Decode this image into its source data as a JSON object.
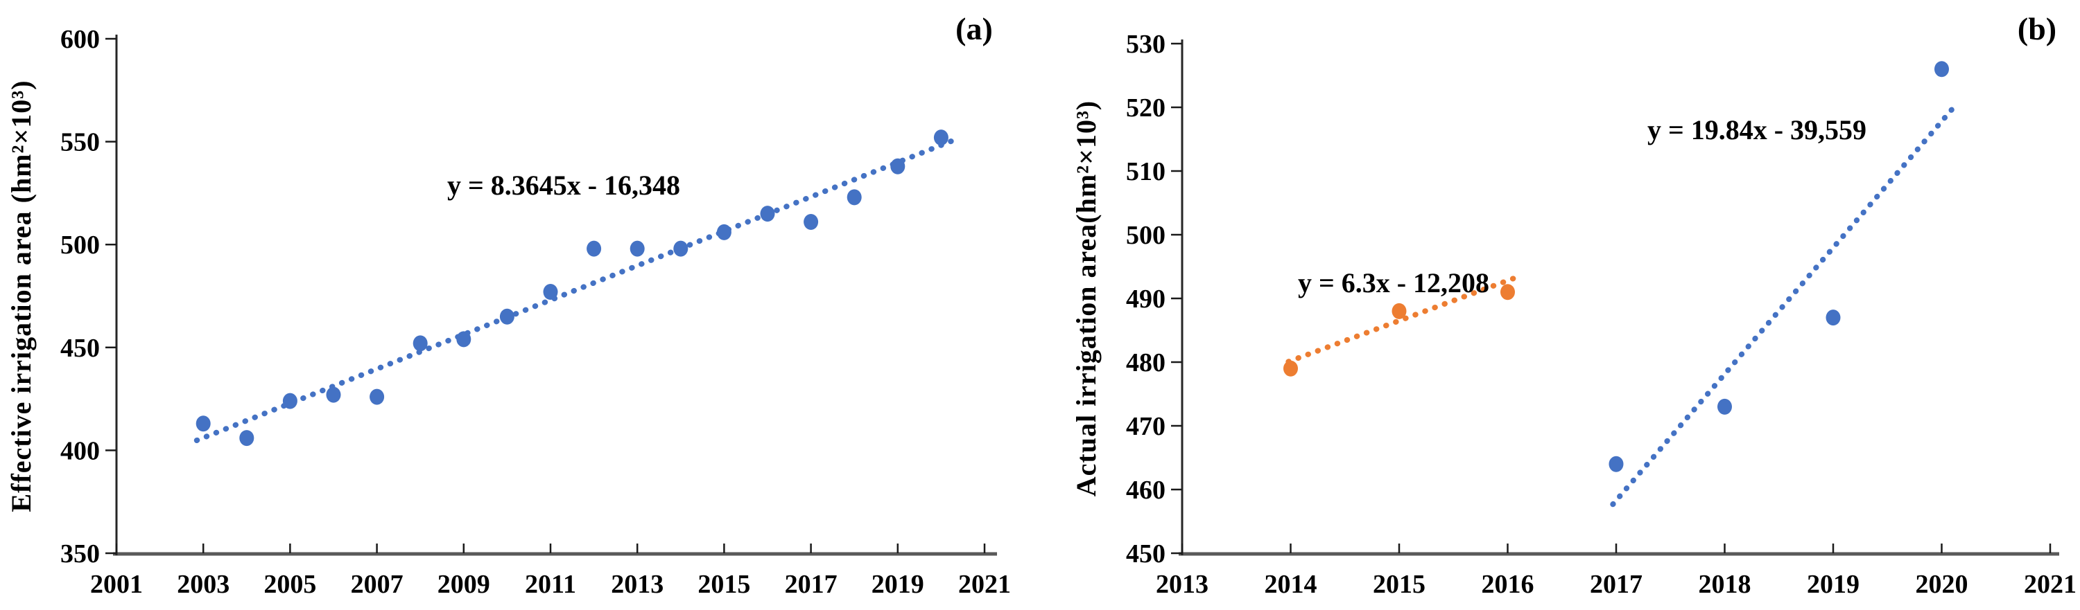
{
  "figure": {
    "background": "#ffffff"
  },
  "colors": {
    "series_blue": "#4472C4",
    "series_orange": "#ED7D31",
    "x_axis_line": "#595959",
    "y_axis_line": "#262626",
    "tick_line": "#1a1a1a",
    "text": "#000000"
  },
  "chart_data": [
    {
      "id": "a",
      "type": "scatter",
      "panel_label": "(a)",
      "title": "",
      "xlabel": "",
      "ylabel": "Effective irrigation area (hm²×10³)",
      "xlim": [
        2001,
        2021
      ],
      "ylim": [
        350,
        600
      ],
      "xticks": [
        2001,
        2003,
        2005,
        2007,
        2009,
        2011,
        2013,
        2015,
        2017,
        2019,
        2021
      ],
      "yticks": [
        350,
        400,
        450,
        500,
        550,
        600
      ],
      "grid": false,
      "legend": "none",
      "series": [
        {
          "name": "effective-irrigation-area",
          "color": "#4472C4",
          "marker": "circle",
          "x": [
            2003,
            2004,
            2005,
            2006,
            2007,
            2008,
            2009,
            2010,
            2011,
            2012,
            2013,
            2014,
            2015,
            2016,
            2017,
            2018,
            2019,
            2020
          ],
          "y": [
            413,
            406,
            424,
            427,
            426,
            452,
            454,
            465,
            477,
            498,
            498,
            498,
            506,
            515,
            511,
            523,
            538,
            552
          ],
          "trendline": {
            "label": "y = 8.3645x - 16,348",
            "slope": 8.3645,
            "intercept": -16348,
            "x_range": [
              2002.85,
              2020.35
            ],
            "style": "dotted"
          }
        }
      ]
    },
    {
      "id": "b",
      "type": "scatter",
      "panel_label": "(b)",
      "title": "",
      "xlabel": "",
      "ylabel": "Actual irrigation area(hm²×10³)",
      "xlim": [
        2013,
        2021
      ],
      "ylim": [
        450,
        530
      ],
      "xticks": [
        2013,
        2014,
        2015,
        2016,
        2017,
        2018,
        2019,
        2020,
        2021
      ],
      "yticks": [
        450,
        460,
        470,
        480,
        490,
        500,
        510,
        520,
        530
      ],
      "grid": false,
      "legend": "none",
      "series": [
        {
          "name": "actual-irrigation-area-2014-2016",
          "color": "#ED7D31",
          "marker": "circle",
          "x": [
            2014,
            2015,
            2016
          ],
          "y": [
            479,
            488,
            491
          ],
          "trendline": {
            "label": "y = 6.3x - 12,208",
            "slope": 6.3,
            "intercept": -12208,
            "x_range": [
              2013.98,
              2016.13
            ],
            "style": "dotted"
          }
        },
        {
          "name": "actual-irrigation-area-2017-2020",
          "color": "#4472C4",
          "marker": "circle",
          "x": [
            2017,
            2018,
            2019,
            2020
          ],
          "y": [
            464,
            473,
            487,
            526
          ],
          "trendline": {
            "label": "y = 19.84x - 39,559",
            "slope": 19.84,
            "intercept": -39559,
            "x_range": [
              2016.97,
              2020.15
            ],
            "style": "dotted"
          }
        }
      ]
    }
  ]
}
